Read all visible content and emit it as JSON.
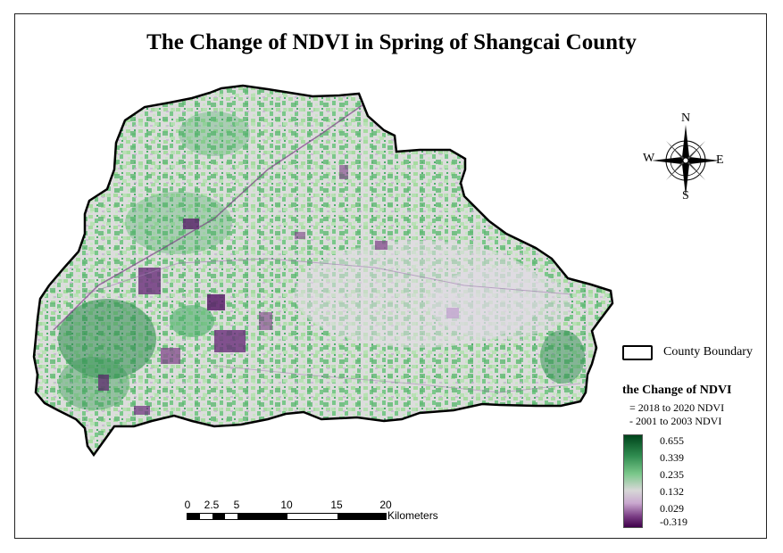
{
  "map": {
    "title": "The Change of NDVI in Spring of Shangcai County",
    "colors": {
      "high": "#00441b",
      "mid_green": "#4daf6a",
      "light_green": "#a6dba0",
      "neutral": "#e0e0e0",
      "light_purple": "#c2a5cf",
      "low": "#40004b",
      "boundary": "#000000"
    }
  },
  "compass": {
    "north": "N",
    "south": "S",
    "east": "E",
    "west": "W",
    "icon": "compass-rose-icon"
  },
  "legend": {
    "boundary_label": "County Boundary",
    "ndvi_title": "the Change of NDVI",
    "formula_line1": "= 2018 to 2020 NDVI",
    "formula_line2": "- 2001 to 2003 NDVI",
    "ramp_labels": [
      "0.655",
      "0.339",
      "0.235",
      "0.132",
      "0.029",
      "-0.319"
    ]
  },
  "scale_bar": {
    "ticks": [
      "0",
      "2.5",
      "5",
      "10",
      "15",
      "20"
    ],
    "unit": "Kilometers"
  }
}
